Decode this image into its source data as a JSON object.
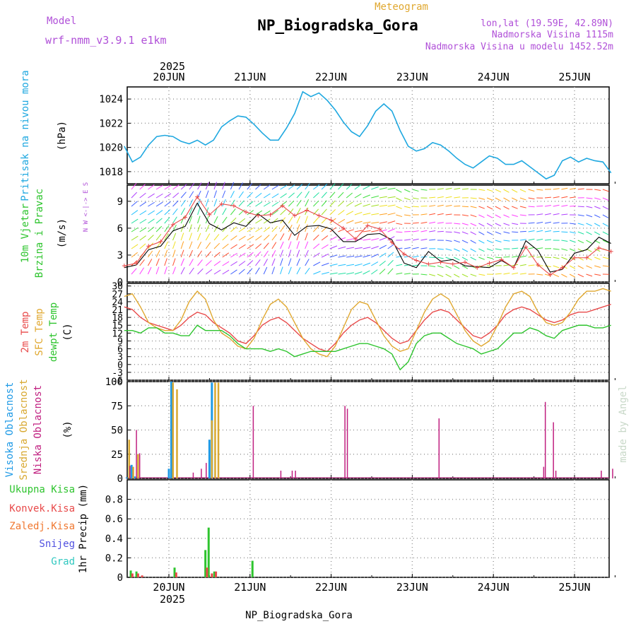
{
  "header": {
    "model_label": "Model",
    "model_name": "wrf-nmm_v3.9.1 e1km",
    "meteogram_label": "Meteogram",
    "title": "NP_Biogradska_Gora",
    "coords": "lon,lat (19.59E, 42.89N)",
    "elevation": "Nadmorska Visina 1115m",
    "model_elevation": "Nadmorska Visina u modelu 1452.52m",
    "footer": "NP_Biogradska_Gora",
    "watermark": "made by Angel",
    "year": "2025"
  },
  "colors": {
    "pressure": "#1fa8e0",
    "temp2m": "#e84a4a",
    "sfc": "#e0a830",
    "dew": "#2ec42e",
    "high_cloud": "#1f9ae6",
    "mid_cloud": "#d8a830",
    "low_cloud": "#c02080",
    "total_precip": "#2ec42e",
    "conv_precip": "#e84a4a",
    "frozen_precip": "#f07830",
    "snow": "#5050e0",
    "graupel": "#30c8c0",
    "wind_speed": "#000000",
    "gust": "#e84a4a"
  },
  "chart_data": [
    {
      "type": "line",
      "panel": "pressure",
      "ylabel_top": "Pritisak na nivou mora",
      "ylabel": "(hPa)",
      "ylim": [
        1017,
        1025
      ],
      "yticks": [
        "1024",
        "1022",
        "1020",
        "1018"
      ],
      "x_days": [
        "20JUN",
        "21JUN",
        "22JUN",
        "23JUN",
        "24JUN",
        "25JUN"
      ],
      "x": [
        -0.55,
        -0.45,
        -0.35,
        -0.25,
        -0.15,
        -0.05,
        0.05,
        0.15,
        0.25,
        0.35,
        0.45,
        0.55,
        0.65,
        0.75,
        0.85,
        0.95,
        1.05,
        1.15,
        1.25,
        1.35,
        1.45,
        1.55,
        1.65,
        1.75,
        1.85,
        1.95,
        2.05,
        2.15,
        2.25,
        2.35,
        2.45,
        2.55,
        2.65,
        2.75,
        2.85,
        2.95,
        3.05,
        3.15,
        3.25,
        3.35,
        3.45,
        3.55,
        3.65,
        3.75,
        3.85,
        3.95,
        4.05,
        4.15,
        4.25,
        4.35,
        4.45,
        4.55,
        4.65,
        4.75,
        4.85,
        4.95,
        5.05,
        5.15,
        5.25,
        5.35,
        5.45
      ],
      "values": [
        1020.1,
        1018.8,
        1019.2,
        1020.2,
        1020.9,
        1021.0,
        1020.9,
        1020.5,
        1020.3,
        1020.6,
        1020.2,
        1020.6,
        1021.7,
        1022.2,
        1022.6,
        1022.5,
        1021.9,
        1021.2,
        1020.6,
        1020.6,
        1021.6,
        1022.8,
        1024.6,
        1024.2,
        1024.5,
        1023.9,
        1023.1,
        1022.1,
        1021.3,
        1020.9,
        1021.8,
        1023.0,
        1023.6,
        1023.0,
        1021.4,
        1020.1,
        1019.7,
        1019.9,
        1020.4,
        1020.2,
        1019.7,
        1019.1,
        1018.6,
        1018.3,
        1018.8,
        1019.3,
        1019.1,
        1018.6,
        1018.6,
        1018.9,
        1018.4,
        1017.9,
        1017.4,
        1017.7,
        1018.9,
        1019.2,
        1018.8,
        1019.1,
        1018.9,
        1018.8,
        1017.9
      ]
    },
    {
      "type": "line",
      "panel": "wind",
      "ylabel_top": "10m Vjetar",
      "ylabel_bottom": "Brzina i Pravac",
      "ylabel": "(m/s)",
      "compass": "N  W <-|-> E  S",
      "ylim": [
        0,
        10.8
      ],
      "yticks": [
        "9",
        "6",
        "3",
        "0"
      ],
      "series": [
        {
          "role": "speed",
          "x": [
            -0.55,
            -0.4,
            -0.25,
            -0.1,
            0.05,
            0.2,
            0.35,
            0.5,
            0.65,
            0.8,
            0.95,
            1.1,
            1.25,
            1.4,
            1.55,
            1.7,
            1.85,
            2.0,
            2.15,
            2.3,
            2.45,
            2.6,
            2.75,
            2.9,
            3.05,
            3.2,
            3.35,
            3.5,
            3.65,
            3.8,
            3.95,
            4.1,
            4.25,
            4.4,
            4.55,
            4.7,
            4.85,
            5.0,
            5.15,
            5.3,
            5.45
          ],
          "values": [
            1.6,
            1.9,
            3.6,
            4.0,
            5.7,
            6.2,
            8.8,
            6.5,
            5.8,
            6.6,
            6.2,
            7.6,
            6.6,
            6.9,
            5.2,
            6.2,
            6.3,
            5.9,
            4.5,
            4.5,
            5.3,
            5.4,
            4.7,
            2.1,
            1.6,
            3.4,
            2.3,
            2.5,
            1.8,
            1.7,
            1.6,
            2.4,
            1.6,
            4.6,
            3.5,
            1.1,
            1.4,
            3.2,
            3.6,
            5.0,
            4.3
          ]
        },
        {
          "role": "gust",
          "x": [
            -0.55,
            -0.4,
            -0.25,
            -0.1,
            0.05,
            0.2,
            0.35,
            0.5,
            0.65,
            0.8,
            0.95,
            1.1,
            1.25,
            1.4,
            1.55,
            1.7,
            1.85,
            2.0,
            2.15,
            2.3,
            2.45,
            2.6,
            2.75,
            2.9,
            3.05,
            3.2,
            3.35,
            3.5,
            3.65,
            3.8,
            3.95,
            4.1,
            4.25,
            4.4,
            4.55,
            4.7,
            4.85,
            5.0,
            5.15,
            5.3,
            5.45
          ],
          "values": [
            1.8,
            2.1,
            4.0,
            4.5,
            6.4,
            7.2,
            9.5,
            7.5,
            8.7,
            8.5,
            7.8,
            7.4,
            7.5,
            8.5,
            7.4,
            8.0,
            7.4,
            6.9,
            6.0,
            4.8,
            6.3,
            5.9,
            4.4,
            3.1,
            2.4,
            2.0,
            2.2,
            2.0,
            2.2,
            1.6,
            2.1,
            2.5,
            1.6,
            3.9,
            1.9,
            0.8,
            1.6,
            2.7,
            2.7,
            3.8,
            3.4
          ]
        }
      ]
    },
    {
      "type": "line",
      "panel": "temperature",
      "ylabel_a": "2m Temp",
      "ylabel_b": "SFC Temp",
      "ylabel_c": "dewpt Temp",
      "ylabel": "(C)",
      "ylim": [
        -6,
        31
      ],
      "yticks": [
        "30",
        "27",
        "24",
        "21",
        "18",
        "15",
        "12",
        "9",
        "6",
        "3",
        "0",
        "-3",
        "-6"
      ],
      "x": [
        -0.55,
        -0.45,
        -0.35,
        -0.25,
        -0.15,
        -0.05,
        0.05,
        0.15,
        0.25,
        0.35,
        0.45,
        0.55,
        0.65,
        0.75,
        0.85,
        0.95,
        1.05,
        1.15,
        1.25,
        1.35,
        1.45,
        1.55,
        1.65,
        1.75,
        1.85,
        1.95,
        2.05,
        2.15,
        2.25,
        2.35,
        2.45,
        2.55,
        2.65,
        2.75,
        2.85,
        2.95,
        3.05,
        3.15,
        3.25,
        3.35,
        3.45,
        3.55,
        3.65,
        3.75,
        3.85,
        3.95,
        4.05,
        4.15,
        4.25,
        4.35,
        4.45,
        4.55,
        4.65,
        4.75,
        4.85,
        4.95,
        5.05,
        5.15,
        5.25,
        5.35,
        5.45
      ],
      "series": [
        {
          "role": "temp2m",
          "values": [
            22,
            21,
            18,
            16,
            15,
            14,
            13,
            15,
            18,
            20,
            19,
            16,
            14,
            12,
            9,
            8,
            11,
            15,
            17,
            18,
            16,
            13,
            10,
            8,
            6,
            5,
            8,
            12,
            15,
            17,
            18,
            16,
            13,
            10,
            8,
            9,
            13,
            17,
            20,
            21,
            20,
            17,
            14,
            11,
            10,
            12,
            15,
            19,
            21,
            22,
            21,
            19,
            17,
            16,
            17,
            19,
            20,
            20,
            21,
            22,
            23
          ]
        },
        {
          "role": "sfc",
          "values": [
            26,
            27,
            22,
            16,
            14,
            13,
            13,
            17,
            24,
            28,
            25,
            17,
            12,
            10,
            7,
            6,
            10,
            17,
            23,
            25,
            22,
            16,
            10,
            6,
            4,
            3,
            7,
            14,
            21,
            24,
            23,
            17,
            11,
            7,
            5,
            6,
            13,
            20,
            25,
            27,
            25,
            19,
            13,
            9,
            7,
            9,
            15,
            22,
            27,
            28,
            26,
            20,
            16,
            15,
            16,
            20,
            25,
            28,
            28,
            29,
            28
          ]
        },
        {
          "role": "dewpt",
          "values": [
            13,
            13,
            12,
            14,
            14,
            12,
            12,
            11,
            11,
            15,
            13,
            13,
            13,
            11,
            8,
            6,
            6,
            6,
            5,
            6,
            5,
            3,
            4,
            5,
            5,
            5,
            5,
            6,
            7,
            8,
            8,
            7,
            6,
            4,
            -2,
            1,
            8,
            11,
            12,
            12,
            10,
            8,
            7,
            6,
            4,
            5,
            6,
            9,
            12,
            12,
            14,
            13,
            11,
            10,
            13,
            14,
            15,
            15,
            14,
            14,
            15
          ]
        }
      ]
    },
    {
      "type": "bar",
      "panel": "clouds",
      "ylabel_a": "Visoka Oblacnost",
      "ylabel_b": "Srednja Oblacnost",
      "ylabel_c": "Niska Oblacnost",
      "ylabel": "(%)",
      "ylim": [
        0,
        100
      ],
      "yticks": [
        "100",
        "75",
        "50",
        "25",
        "0"
      ],
      "series": [
        {
          "role": "high",
          "x": [
            -0.52,
            -0.46,
            -0.42,
            0.0,
            0.03,
            0.5,
            0.53
          ],
          "values": [
            1,
            14,
            2,
            10,
            100,
            40,
            99
          ]
        },
        {
          "role": "mid",
          "x": [
            -0.49,
            -0.44,
            -0.38,
            0.05,
            0.1,
            0.53,
            0.57,
            0.61
          ],
          "values": [
            40,
            12,
            25,
            99,
            92,
            60,
            99,
            99
          ]
        },
        {
          "role": "low",
          "x": [
            -0.48,
            -0.4,
            -0.36,
            0.3,
            0.4,
            0.46,
            1.04,
            1.38,
            1.52,
            1.56,
            2.17,
            2.2,
            3.33,
            4.62,
            4.64,
            4.74,
            4.77,
            5.33,
            5.47
          ],
          "values": [
            13,
            50,
            26,
            6,
            10,
            16,
            75,
            8,
            8,
            8,
            75,
            72,
            62,
            12,
            79,
            58,
            8,
            8,
            10
          ]
        }
      ]
    },
    {
      "type": "bar",
      "panel": "precip",
      "legend": [
        "Ukupna Kisa",
        "Konvek.Kisa",
        "Zaledj.Kisa",
        "Snijeg",
        "Grad"
      ],
      "ylabel": "1hr Precip (mm)",
      "ylim": [
        0,
        1.0
      ],
      "yticks": [
        "0.8",
        "0.6",
        "0.4",
        "0.2",
        "0"
      ],
      "x_days": [
        "20JUN",
        "21JUN",
        "22JUN",
        "23JUN",
        "24JUN",
        "25JUN"
      ],
      "series": [
        {
          "role": "total",
          "x": [
            -0.47,
            -0.4,
            0.07,
            0.45,
            0.49,
            0.56,
            1.03
          ],
          "values": [
            0.07,
            0.06,
            0.1,
            0.28,
            0.51,
            0.06,
            0.17
          ]
        },
        {
          "role": "conv",
          "x": [
            -0.45,
            -0.38,
            -0.33,
            0.09,
            0.47,
            0.53,
            0.58
          ],
          "values": [
            0.04,
            0.04,
            0.02,
            0.05,
            0.1,
            0.04,
            0.06
          ]
        }
      ]
    }
  ]
}
